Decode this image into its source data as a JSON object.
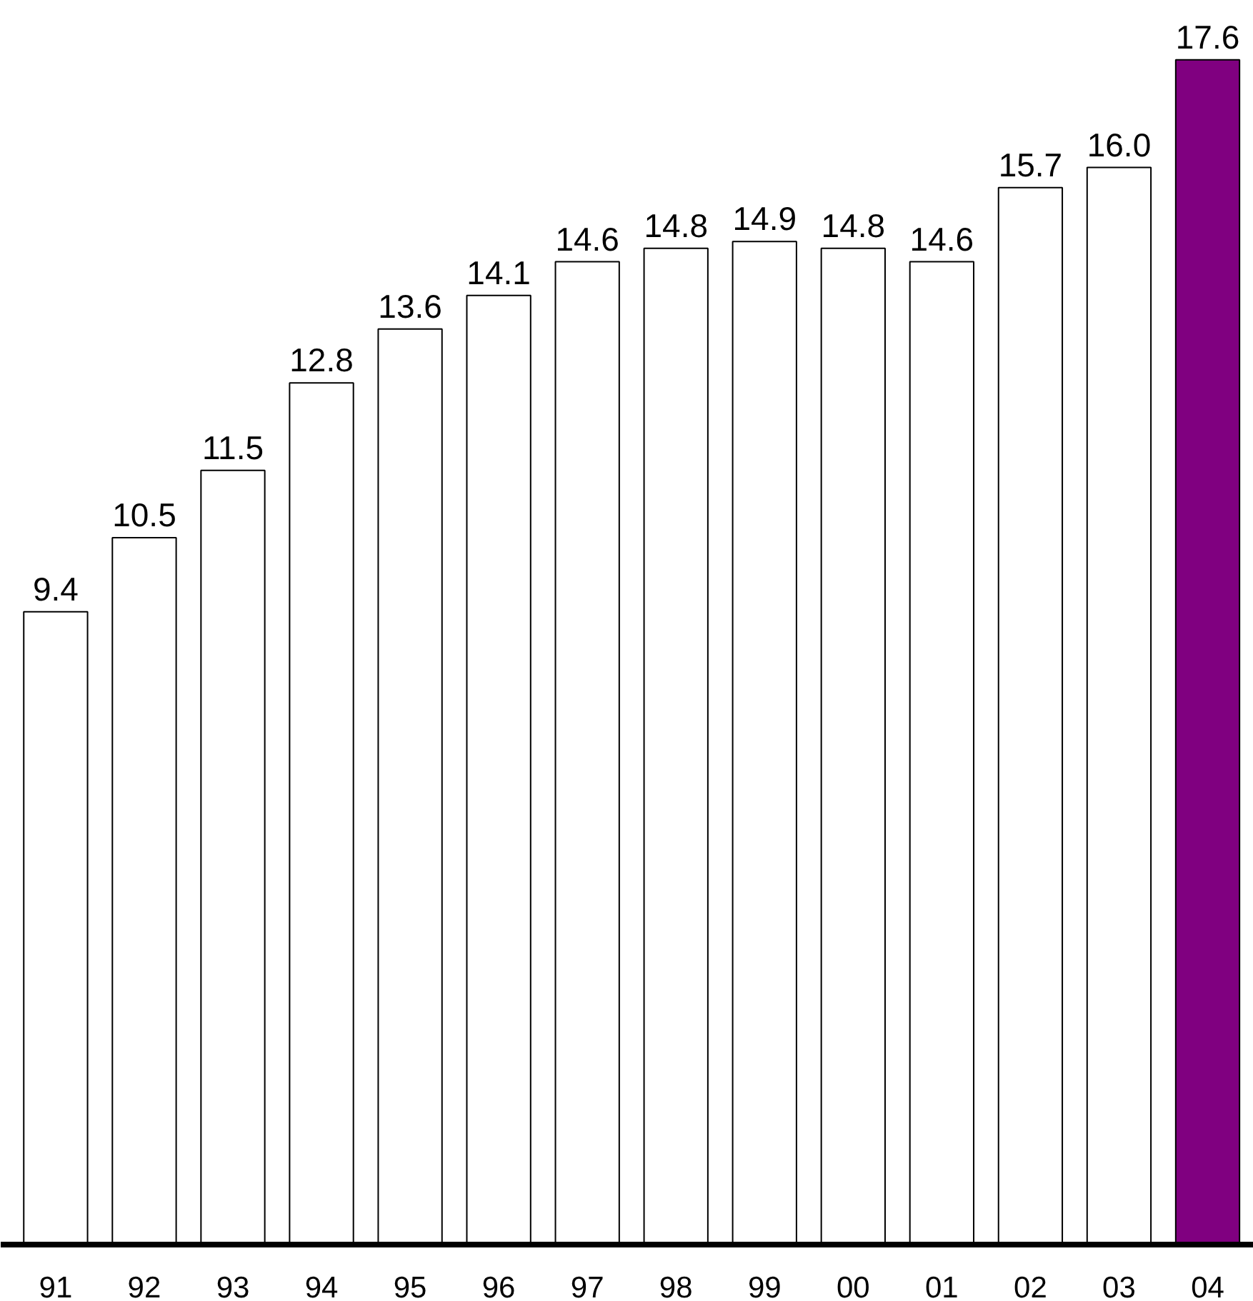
{
  "chart_data": {
    "type": "bar",
    "categories": [
      "91",
      "92",
      "93",
      "94",
      "95",
      "96",
      "97",
      "98",
      "99",
      "00",
      "01",
      "02",
      "03",
      "04"
    ],
    "values": [
      9.4,
      10.5,
      11.5,
      12.8,
      13.6,
      14.1,
      14.6,
      14.8,
      14.9,
      14.8,
      14.6,
      15.7,
      16.0,
      17.6
    ],
    "value_labels": [
      "9.4",
      "10.5",
      "11.5",
      "12.8",
      "13.6",
      "14.1",
      "14.6",
      "14.8",
      "14.9",
      "14.8",
      "14.6",
      "15.7",
      "16.0",
      "17.6"
    ],
    "colors": [
      "#ffffff",
      "#ffffff",
      "#ffffff",
      "#ffffff",
      "#ffffff",
      "#ffffff",
      "#ffffff",
      "#ffffff",
      "#ffffff",
      "#ffffff",
      "#ffffff",
      "#ffffff",
      "#ffffff",
      "#800080"
    ],
    "grid": false
  }
}
